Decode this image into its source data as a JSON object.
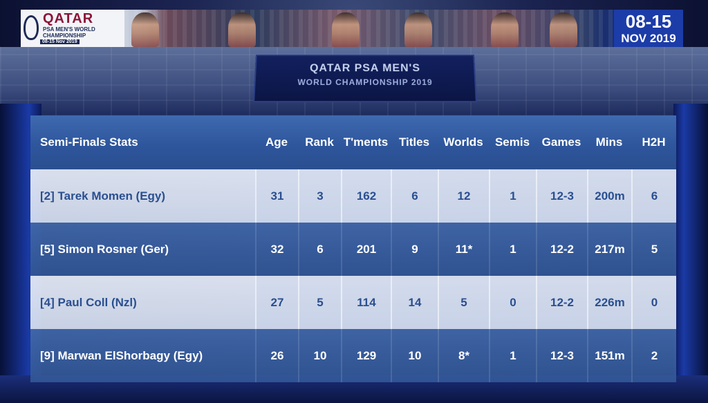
{
  "banner": {
    "logo_title": "QATAR",
    "logo_line2": "PSA MEN'S WORLD",
    "logo_line3": "CHAMPIONSHIP",
    "logo_dates": "08-15 Nov 2019",
    "date_range": "08-15",
    "date_month": "NOV 2019"
  },
  "venue": {
    "board_title": "QATAR PSA MEN'S",
    "board_subtitle": "WORLD CHAMPIONSHIP 2019"
  },
  "table": {
    "headers": [
      "Semi-Finals Stats",
      "Age",
      "Rank",
      "T'ments",
      "Titles",
      "Worlds",
      "Semis",
      "Games",
      "Mins",
      "H2H"
    ],
    "rows": [
      [
        "[2] Tarek Momen (Egy)",
        "31",
        "3",
        "162",
        "6",
        "12",
        "1",
        "12-3",
        "200m",
        "6"
      ],
      [
        "[5] Simon Rosner (Ger)",
        "32",
        "6",
        "201",
        "9",
        "11*",
        "1",
        "12-2",
        "217m",
        "5"
      ],
      [
        "[4] Paul Coll (Nzl)",
        "27",
        "5",
        "114",
        "14",
        "5",
        "0",
        "12-2",
        "226m",
        "0"
      ],
      [
        "[9] Marwan ElShorbagy (Egy)",
        "26",
        "10",
        "129",
        "10",
        "8*",
        "1",
        "12-3",
        "151m",
        "2"
      ]
    ]
  },
  "colors": {
    "header_blue": "#2e569c",
    "light_row_text": "#2a4f90",
    "dark_row_text": "#ffffff",
    "date_badge": "#1c3ca8",
    "logo_maroon": "#8a1538"
  }
}
